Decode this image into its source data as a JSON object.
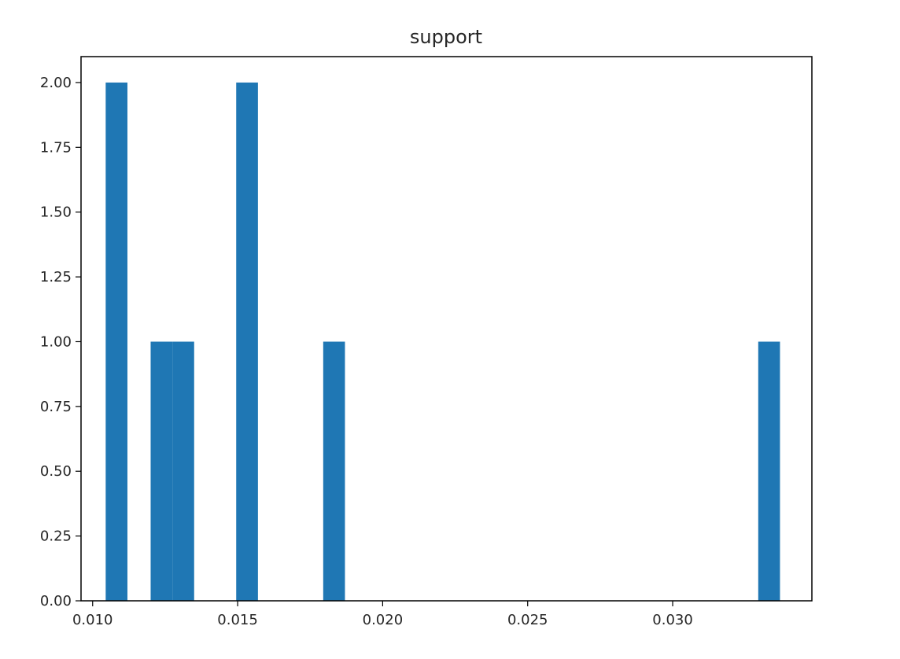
{
  "chart_data": {
    "type": "bar",
    "subtype": "histogram",
    "title": "support",
    "xlabel": "",
    "ylabel": "",
    "xlim": [
      0.0096,
      0.0348
    ],
    "ylim": [
      0.0,
      2.1
    ],
    "bin_width": 0.00075,
    "bars": [
      {
        "x_start": 0.01045,
        "x_end": 0.0112,
        "value": 2
      },
      {
        "x_start": 0.012,
        "x_end": 0.01275,
        "value": 1
      },
      {
        "x_start": 0.01275,
        "x_end": 0.0135,
        "value": 1
      },
      {
        "x_start": 0.01495,
        "x_end": 0.0157,
        "value": 2
      },
      {
        "x_start": 0.01795,
        "x_end": 0.0187,
        "value": 1
      },
      {
        "x_start": 0.03295,
        "x_end": 0.0337,
        "value": 1
      }
    ],
    "x_ticks": [
      {
        "value": 0.01,
        "label": "0.010"
      },
      {
        "value": 0.015,
        "label": "0.015"
      },
      {
        "value": 0.02,
        "label": "0.020"
      },
      {
        "value": 0.025,
        "label": "0.025"
      },
      {
        "value": 0.03,
        "label": "0.030"
      }
    ],
    "y_ticks": [
      {
        "value": 0.0,
        "label": "0.00"
      },
      {
        "value": 0.25,
        "label": "0.25"
      },
      {
        "value": 0.5,
        "label": "0.50"
      },
      {
        "value": 0.75,
        "label": "0.75"
      },
      {
        "value": 1.0,
        "label": "1.00"
      },
      {
        "value": 1.25,
        "label": "1.25"
      },
      {
        "value": 1.5,
        "label": "1.50"
      },
      {
        "value": 1.75,
        "label": "1.75"
      },
      {
        "value": 2.0,
        "label": "2.00"
      }
    ],
    "grid": false,
    "bar_color": "#1f77b4",
    "axis_color": "#000000",
    "text_color": "#262626"
  }
}
